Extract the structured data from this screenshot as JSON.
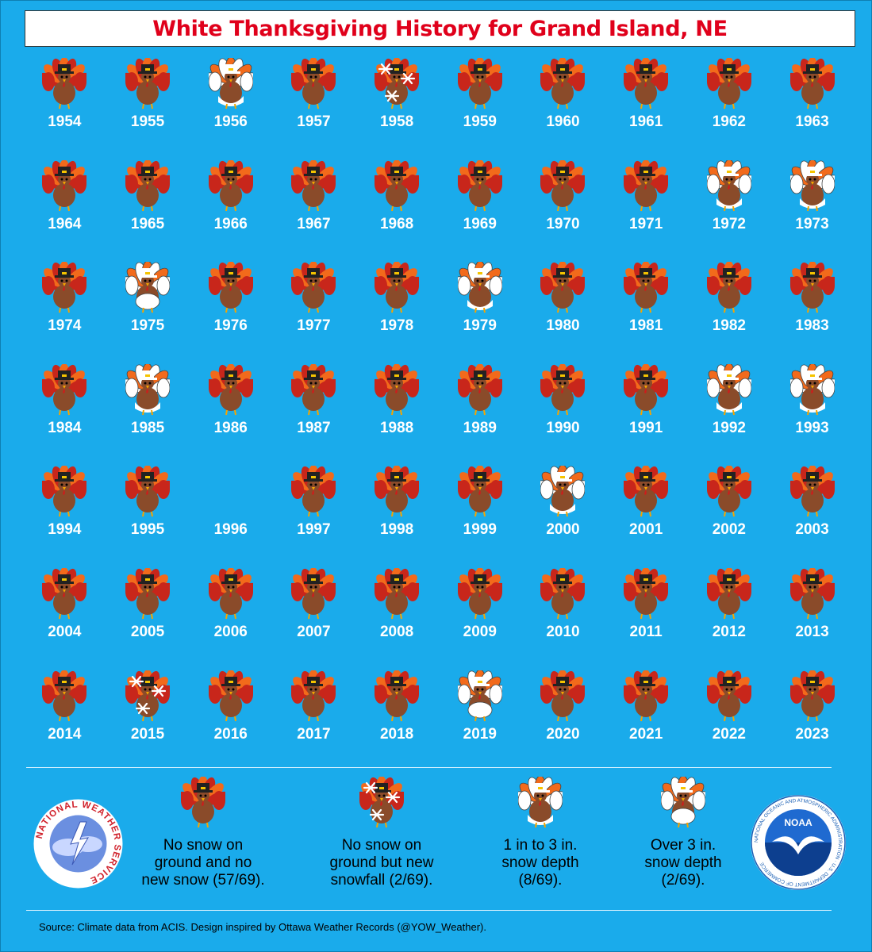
{
  "title": "White Thanksgiving History for Grand Island, NE",
  "colors": {
    "background": "#1aabeb",
    "title_text": "#e0001b",
    "turkey_body": "#8a4b2a",
    "feather_red": "#c8261b",
    "feather_orange": "#f26a1b",
    "snow_white": "#ffffff"
  },
  "categories": {
    "none": "no-snow-turkey-icon",
    "snowfall": "snowfall-turkey-icon",
    "light": "light-snow-depth-turkey-icon",
    "heavy": "heavy-snow-depth-turkey-icon"
  },
  "years": [
    {
      "year": "1954",
      "cat": "none"
    },
    {
      "year": "1955",
      "cat": "none"
    },
    {
      "year": "1956",
      "cat": "light"
    },
    {
      "year": "1957",
      "cat": "none"
    },
    {
      "year": "1958",
      "cat": "snowfall"
    },
    {
      "year": "1959",
      "cat": "none"
    },
    {
      "year": "1960",
      "cat": "none"
    },
    {
      "year": "1961",
      "cat": "none"
    },
    {
      "year": "1962",
      "cat": "none"
    },
    {
      "year": "1963",
      "cat": "none"
    },
    {
      "year": "1964",
      "cat": "none"
    },
    {
      "year": "1965",
      "cat": "none"
    },
    {
      "year": "1966",
      "cat": "none"
    },
    {
      "year": "1967",
      "cat": "none"
    },
    {
      "year": "1968",
      "cat": "none"
    },
    {
      "year": "1969",
      "cat": "none"
    },
    {
      "year": "1970",
      "cat": "none"
    },
    {
      "year": "1971",
      "cat": "none"
    },
    {
      "year": "1972",
      "cat": "light"
    },
    {
      "year": "1973",
      "cat": "light"
    },
    {
      "year": "1974",
      "cat": "none"
    },
    {
      "year": "1975",
      "cat": "heavy"
    },
    {
      "year": "1976",
      "cat": "none"
    },
    {
      "year": "1977",
      "cat": "none"
    },
    {
      "year": "1978",
      "cat": "none"
    },
    {
      "year": "1979",
      "cat": "light"
    },
    {
      "year": "1980",
      "cat": "none"
    },
    {
      "year": "1981",
      "cat": "none"
    },
    {
      "year": "1982",
      "cat": "none"
    },
    {
      "year": "1983",
      "cat": "none"
    },
    {
      "year": "1984",
      "cat": "none"
    },
    {
      "year": "1985",
      "cat": "light"
    },
    {
      "year": "1986",
      "cat": "none"
    },
    {
      "year": "1987",
      "cat": "none"
    },
    {
      "year": "1988",
      "cat": "none"
    },
    {
      "year": "1989",
      "cat": "none"
    },
    {
      "year": "1990",
      "cat": "none"
    },
    {
      "year": "1991",
      "cat": "none"
    },
    {
      "year": "1992",
      "cat": "light"
    },
    {
      "year": "1993",
      "cat": "light"
    },
    {
      "year": "1994",
      "cat": "none"
    },
    {
      "year": "1995",
      "cat": "none"
    },
    {
      "year": "1996",
      "cat": "missing"
    },
    {
      "year": "1997",
      "cat": "none"
    },
    {
      "year": "1998",
      "cat": "none"
    },
    {
      "year": "1999",
      "cat": "none"
    },
    {
      "year": "2000",
      "cat": "light"
    },
    {
      "year": "2001",
      "cat": "none"
    },
    {
      "year": "2002",
      "cat": "none"
    },
    {
      "year": "2003",
      "cat": "none"
    },
    {
      "year": "2004",
      "cat": "none"
    },
    {
      "year": "2005",
      "cat": "none"
    },
    {
      "year": "2006",
      "cat": "none"
    },
    {
      "year": "2007",
      "cat": "none"
    },
    {
      "year": "2008",
      "cat": "none"
    },
    {
      "year": "2009",
      "cat": "none"
    },
    {
      "year": "2010",
      "cat": "none"
    },
    {
      "year": "2011",
      "cat": "none"
    },
    {
      "year": "2012",
      "cat": "none"
    },
    {
      "year": "2013",
      "cat": "none"
    },
    {
      "year": "2014",
      "cat": "none"
    },
    {
      "year": "2015",
      "cat": "snowfall"
    },
    {
      "year": "2016",
      "cat": "none"
    },
    {
      "year": "2017",
      "cat": "none"
    },
    {
      "year": "2018",
      "cat": "none"
    },
    {
      "year": "2019",
      "cat": "heavy"
    },
    {
      "year": "2020",
      "cat": "none"
    },
    {
      "year": "2021",
      "cat": "none"
    },
    {
      "year": "2022",
      "cat": "none"
    },
    {
      "year": "2023",
      "cat": "none"
    }
  ],
  "legend": [
    {
      "cat": "none",
      "text": "No snow on\nground and no\nnew snow (57/69)."
    },
    {
      "cat": "snowfall",
      "text": "No snow on\nground but new\nsnowfall (2/69)."
    },
    {
      "cat": "light",
      "text": "1 in to 3 in.\nsnow depth\n(8/69)."
    },
    {
      "cat": "heavy",
      "text": "Over 3 in.\nsnow depth\n(2/69)."
    }
  ],
  "logos": {
    "nws_text": "NATIONAL WEATHER SERVICE",
    "noaa_text": "NOAA",
    "noaa_ring_text": "NATIONAL OCEANIC AND ATMOSPHERIC ADMINISTRATION · U.S. DEPARTMENT OF COMMERCE"
  },
  "source": "Source: Climate data from ACIS.   Design inspired by Ottawa Weather Records (@YOW_Weather)."
}
